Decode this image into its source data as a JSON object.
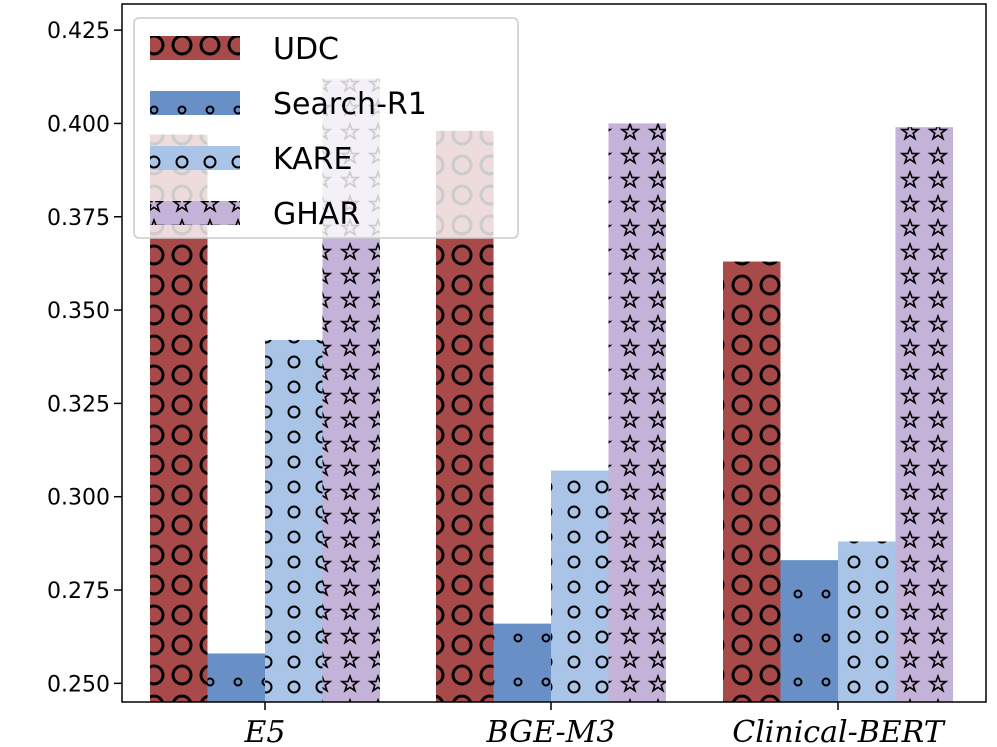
{
  "chart_data": {
    "type": "bar",
    "categories": [
      "E5",
      "BGE-M3",
      "Clinical-BERT"
    ],
    "series": [
      {
        "name": "UDC",
        "values": [
          0.397,
          0.398,
          0.363
        ],
        "color": "#a94a4a",
        "pattern": "large-circles"
      },
      {
        "name": "Search-R1",
        "values": [
          0.258,
          0.266,
          0.283
        ],
        "color": "#6890c6",
        "pattern": "small-dots"
      },
      {
        "name": "KARE",
        "values": [
          0.342,
          0.307,
          0.288
        ],
        "color": "#a9c4e6",
        "pattern": "circles"
      },
      {
        "name": "GHAR",
        "values": [
          0.412,
          0.4,
          0.399
        ],
        "color": "#c4b2d8",
        "pattern": "stars"
      }
    ],
    "ylim": [
      0.245,
      0.432
    ],
    "yticks": [
      "0.250",
      "0.275",
      "0.300",
      "0.325",
      "0.350",
      "0.375",
      "0.400",
      "0.425"
    ],
    "ytick_values": [
      0.25,
      0.275,
      0.3,
      0.325,
      0.35,
      0.375,
      0.4,
      0.425
    ],
    "title": "",
    "xlabel": "",
    "ylabel": "",
    "legend": "top-left",
    "grid": false
  }
}
